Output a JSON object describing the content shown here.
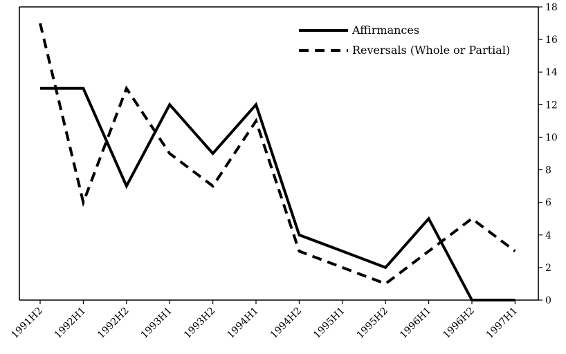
{
  "chart_data": {
    "type": "line",
    "categories": [
      "1991H2",
      "1992H1",
      "1992H2",
      "1993H1",
      "1993H2",
      "1994H1",
      "1994H2",
      "1995H1",
      "1995H2",
      "1996H1",
      "1996H2",
      "1997H1"
    ],
    "series": [
      {
        "name": "Affirmances",
        "style": "solid",
        "color": "#000000",
        "values": [
          13,
          13,
          7,
          12,
          9,
          12,
          4,
          3,
          2,
          5,
          0,
          0
        ]
      },
      {
        "name": "Reversals (Whole or Partial)",
        "style": "dashed",
        "color": "#000000",
        "values": [
          17,
          6,
          13,
          9,
          7,
          11,
          3,
          2,
          1,
          3,
          5,
          3
        ]
      }
    ],
    "y_axis": {
      "side": "right",
      "ylim": [
        0,
        18
      ],
      "ticks": [
        0,
        2,
        4,
        6,
        8,
        10,
        12,
        14,
        16,
        18
      ]
    },
    "xlabel": "",
    "ylabel": "",
    "grid": false,
    "legend_position": "top-right"
  }
}
